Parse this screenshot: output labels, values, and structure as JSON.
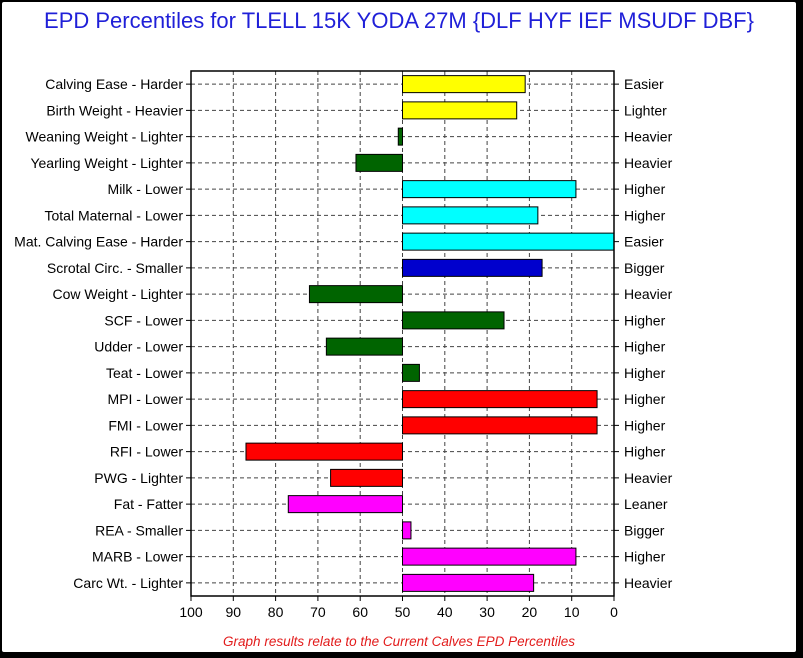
{
  "title": "EPD Percentiles for TLELL 15K YODA 27M {DLF HYF IEF MSUDF DBF}",
  "footnote": "Graph results relate to the Current Calves EPD Percentiles",
  "chart_data": {
    "type": "bar",
    "orientation": "horizontal",
    "xlim": [
      100,
      0
    ],
    "xticks": [
      100,
      90,
      80,
      70,
      60,
      50,
      40,
      30,
      20,
      10,
      0
    ],
    "baseline": 50,
    "grid": true,
    "rows": [
      {
        "left": "Calving Ease - Harder",
        "right": "Easier",
        "value": 21,
        "color": "#ffff00"
      },
      {
        "left": "Birth Weight - Heavier",
        "right": "Lighter",
        "value": 23,
        "color": "#ffff00"
      },
      {
        "left": "Weaning Weight - Lighter",
        "right": "Heavier",
        "value": 51,
        "color": "#006400"
      },
      {
        "left": "Yearling Weight - Lighter",
        "right": "Heavier",
        "value": 61,
        "color": "#006400"
      },
      {
        "left": "Milk - Lower",
        "right": "Higher",
        "value": 9,
        "color": "#00ffff"
      },
      {
        "left": "Total Maternal - Lower",
        "right": "Higher",
        "value": 18,
        "color": "#00ffff"
      },
      {
        "left": "Mat. Calving Ease - Harder",
        "right": "Easier",
        "value": 0,
        "color": "#00ffff"
      },
      {
        "left": "Scrotal Circ. - Smaller",
        "right": "Bigger",
        "value": 17,
        "color": "#0000cd"
      },
      {
        "left": "Cow Weight - Lighter",
        "right": "Heavier",
        "value": 72,
        "color": "#006400"
      },
      {
        "left": "SCF - Lower",
        "right": "Higher",
        "value": 26,
        "color": "#006400"
      },
      {
        "left": "Udder - Lower",
        "right": "Higher",
        "value": 68,
        "color": "#006400"
      },
      {
        "left": "Teat - Lower",
        "right": "Higher",
        "value": 46,
        "color": "#006400"
      },
      {
        "left": "MPI - Lower",
        "right": "Higher",
        "value": 4,
        "color": "#ff0000"
      },
      {
        "left": "FMI - Lower",
        "right": "Higher",
        "value": 4,
        "color": "#ff0000"
      },
      {
        "left": "RFI - Lower",
        "right": "Higher",
        "value": 87,
        "color": "#ff0000"
      },
      {
        "left": "PWG - Lighter",
        "right": "Heavier",
        "value": 67,
        "color": "#ff0000"
      },
      {
        "left": "Fat - Fatter",
        "right": "Leaner",
        "value": 77,
        "color": "#ff00ff"
      },
      {
        "left": "REA - Smaller",
        "right": "Bigger",
        "value": 48,
        "color": "#ff00ff"
      },
      {
        "left": "MARB - Lower",
        "right": "Higher",
        "value": 9,
        "color": "#ff00ff"
      },
      {
        "left": "Carc Wt. - Lighter",
        "right": "Heavier",
        "value": 19,
        "color": "#ff00ff"
      }
    ]
  }
}
